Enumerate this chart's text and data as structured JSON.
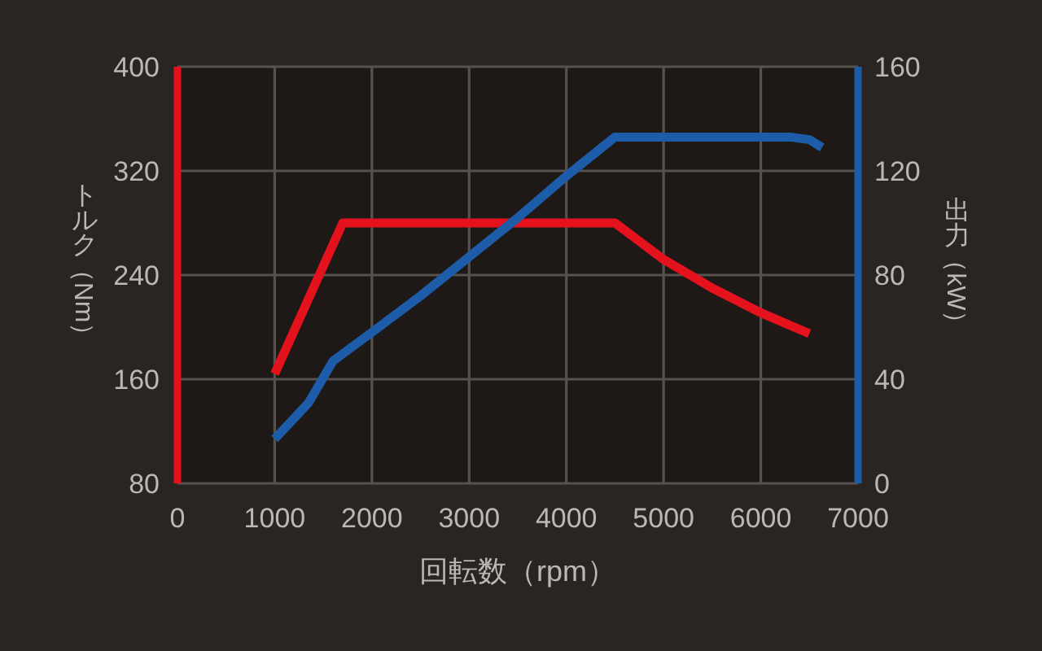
{
  "chart_data": {
    "type": "line",
    "xlabel": "回転数（rpm）",
    "ylabel": "トルク（Nm）",
    "y2label": "出力（kW）",
    "xlim": [
      0,
      7000
    ],
    "xticks": [
      0,
      1000,
      2000,
      3000,
      4000,
      5000,
      6000,
      7000
    ],
    "ylim": [
      80,
      400
    ],
    "yticks": [
      80,
      160,
      240,
      320,
      400
    ],
    "y2lim": [
      0,
      160
    ],
    "y2ticks": [
      0,
      40,
      80,
      120,
      160
    ],
    "grid": true,
    "series": [
      {
        "color": "#e3121c",
        "x": [
          1000,
          1700,
          4500,
          5000,
          5500,
          6000,
          6500
        ],
        "values": [
          164,
          280,
          280,
          252,
          230,
          211,
          195
        ]
      },
      {
        "color": "#1d5ca8",
        "axis": "y2",
        "x": [
          1000,
          1350,
          1600,
          2000,
          2500,
          3000,
          3500,
          4000,
          4500,
          6300,
          6500,
          6630
        ],
        "values": [
          17,
          31,
          47,
          58,
          72,
          87,
          102,
          118,
          133,
          133,
          132,
          129
        ]
      }
    ]
  }
}
